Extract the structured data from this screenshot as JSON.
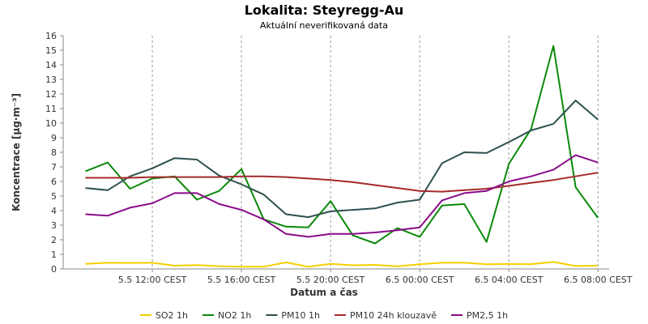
{
  "chart_data": {
    "type": "line",
    "title": "Lokalita: Steyregg-Au",
    "subtitle": "Aktuální neverifikovaná data",
    "xlabel": "Datum a čas",
    "ylabel": "Koncentrace [µg·m⁻³]",
    "ylim": [
      0,
      16
    ],
    "yticks": [
      0,
      1,
      2,
      3,
      4,
      5,
      6,
      7,
      8,
      9,
      10,
      11,
      12,
      13,
      14,
      15,
      16
    ],
    "x": [
      "2023-05-05T09:00",
      "2023-05-05T10:00",
      "2023-05-05T11:00",
      "2023-05-05T12:00",
      "2023-05-05T13:00",
      "2023-05-05T14:00",
      "2023-05-05T15:00",
      "2023-05-05T16:00",
      "2023-05-05T17:00",
      "2023-05-05T18:00",
      "2023-05-05T19:00",
      "2023-05-05T20:00",
      "2023-05-05T21:00",
      "2023-05-05T22:00",
      "2023-05-05T23:00",
      "2023-05-06T00:00",
      "2023-05-06T01:00",
      "2023-05-06T02:00",
      "2023-05-06T03:00",
      "2023-05-06T04:00",
      "2023-05-06T05:00",
      "2023-05-06T06:00",
      "2023-05-06T07:00",
      "2023-05-06T08:00"
    ],
    "x_tick_labels": [
      {
        "x": "2023-05-05T12:00",
        "label": "5.5 12:00 CEST"
      },
      {
        "x": "2023-05-05T16:00",
        "label": "5.5 16:00 CEST"
      },
      {
        "x": "2023-05-05T20:00",
        "label": "5.5 20:00 CEST"
      },
      {
        "x": "2023-05-06T00:00",
        "label": "6.5 00:00 CEST"
      },
      {
        "x": "2023-05-06T04:00",
        "label": "6.5 04:00 CEST"
      },
      {
        "x": "2023-05-06T08:00",
        "label": "6.5 08:00 CEST"
      }
    ],
    "grid": true,
    "legend_position": "bottom",
    "series": [
      {
        "name": "SO2 1h",
        "color": "#f5d000",
        "values": [
          0.35,
          0.42,
          0.41,
          0.42,
          0.22,
          0.26,
          0.19,
          0.15,
          0.15,
          0.45,
          0.15,
          0.35,
          0.25,
          0.28,
          0.18,
          0.32,
          0.42,
          0.42,
          0.32,
          0.34,
          0.33,
          0.48,
          0.2,
          0.22
        ]
      },
      {
        "name": "NO2 1h",
        "color": "#0a8a0a",
        "values": [
          6.7,
          7.3,
          5.5,
          6.2,
          6.35,
          4.75,
          5.35,
          6.85,
          3.4,
          2.9,
          2.85,
          4.65,
          2.3,
          1.75,
          2.8,
          2.2,
          4.35,
          4.45,
          1.85,
          7.2,
          9.6,
          15.3,
          5.6,
          3.5
        ]
      },
      {
        "name": "PM10 1h",
        "color": "#2f4f4f",
        "values": [
          5.55,
          5.4,
          6.35,
          6.9,
          7.6,
          7.5,
          6.4,
          5.8,
          5.1,
          3.75,
          3.55,
          3.95,
          4.05,
          4.15,
          4.55,
          4.75,
          7.25,
          8.0,
          7.95,
          8.7,
          9.5,
          9.95,
          11.55,
          10.25
        ]
      },
      {
        "name": "PM10 24h klouzavě",
        "color": "#a52a2a",
        "values": [
          6.25,
          6.25,
          6.25,
          6.3,
          6.3,
          6.3,
          6.3,
          6.35,
          6.35,
          6.3,
          6.2,
          6.1,
          5.95,
          5.75,
          5.55,
          5.35,
          5.3,
          5.4,
          5.5,
          5.7,
          5.9,
          6.1,
          6.35,
          6.6
        ]
      },
      {
        "name": "PM2,5 1h",
        "color": "#8a0a8a",
        "values": [
          3.75,
          3.65,
          4.2,
          4.5,
          5.2,
          5.2,
          4.45,
          4.05,
          3.4,
          2.4,
          2.2,
          2.4,
          2.4,
          2.5,
          2.65,
          2.85,
          4.7,
          5.2,
          5.35,
          6.0,
          6.35,
          6.8,
          7.8,
          7.3
        ]
      }
    ]
  }
}
